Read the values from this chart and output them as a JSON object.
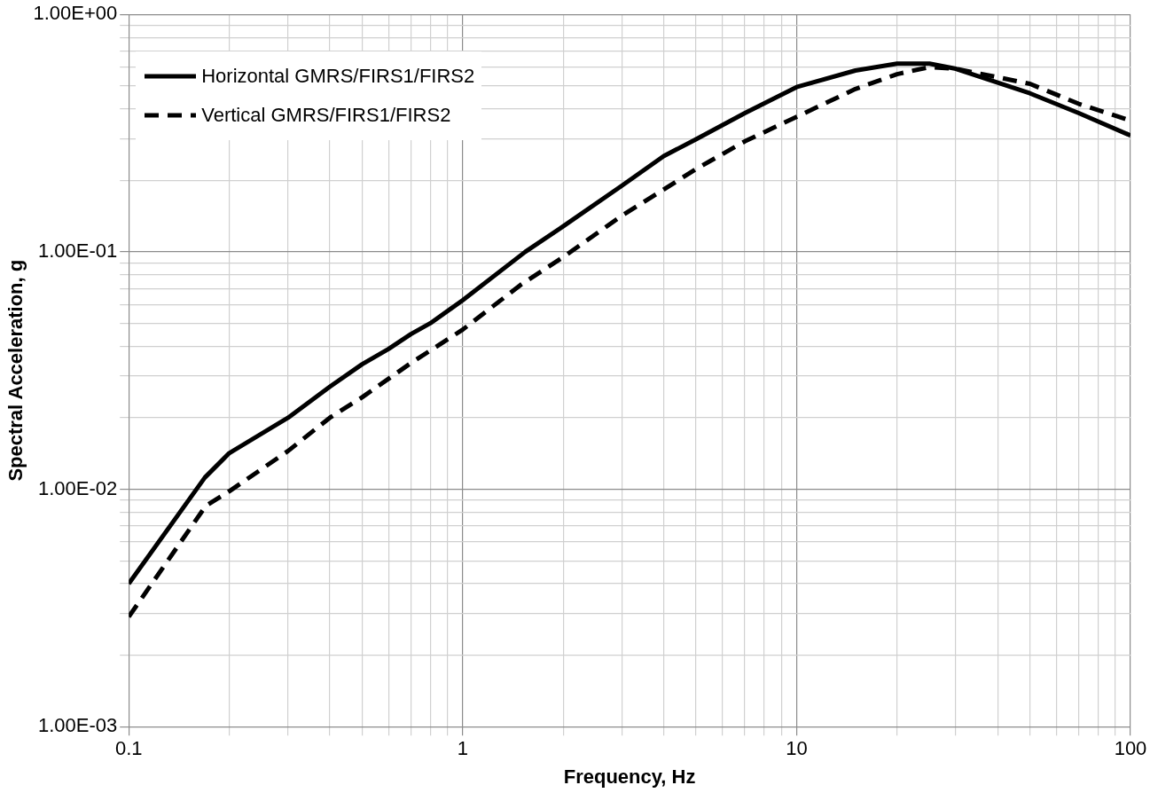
{
  "chart_data": {
    "type": "line",
    "xlabel": "Frequency, Hz",
    "ylabel": "Spectral Acceleration, g",
    "log": "xy",
    "grid": true,
    "legend": "top left",
    "marker": "none",
    "xlim": [
      0.1,
      100
    ],
    "ylim": [
      0.001,
      1
    ],
    "xticks": [
      0.1,
      {
        "value": 0.2,
        "label": null
      },
      {
        "value": 0.3,
        "label": null
      },
      {
        "value": 0.4,
        "label": null
      },
      {
        "value": 0.5,
        "label": null
      },
      {
        "value": 0.6,
        "label": null
      },
      {
        "value": 0.7,
        "label": null
      },
      {
        "value": 0.8,
        "label": null
      },
      {
        "value": 0.9,
        "label": null
      },
      1,
      {
        "value": 2,
        "label": null
      },
      {
        "value": 3,
        "label": null
      },
      {
        "value": 4,
        "label": null
      },
      {
        "value": 5,
        "label": null
      },
      {
        "value": 6,
        "label": null
      },
      {
        "value": 7,
        "label": null
      },
      {
        "value": 8,
        "label": null
      },
      {
        "value": 9,
        "label": null
      },
      10,
      {
        "value": 20,
        "label": null
      },
      {
        "value": 30,
        "label": null
      },
      {
        "value": 40,
        "label": null
      },
      {
        "value": 50,
        "label": null
      },
      {
        "value": 60,
        "label": null
      },
      {
        "value": 70,
        "label": null
      },
      {
        "value": 80,
        "label": null
      },
      {
        "value": 90,
        "label": null
      },
      100
    ],
    "yticks": [
      {
        "value": 0.001,
        "label": "1.00E-03"
      },
      {
        "value": 0.002,
        "label": null
      },
      {
        "value": 0.003,
        "label": null
      },
      {
        "value": 0.004,
        "label": null
      },
      {
        "value": 0.005,
        "label": null
      },
      {
        "value": 0.006,
        "label": null
      },
      {
        "value": 0.007,
        "label": null
      },
      {
        "value": 0.008,
        "label": null
      },
      {
        "value": 0.009,
        "label": null
      },
      {
        "value": 0.01,
        "label": "1.00E-02"
      },
      {
        "value": 0.02,
        "label": null
      },
      {
        "value": 0.03,
        "label": null
      },
      {
        "value": 0.04,
        "label": null
      },
      {
        "value": 0.05,
        "label": null
      },
      {
        "value": 0.06,
        "label": null
      },
      {
        "value": 0.07,
        "label": null
      },
      {
        "value": 0.08,
        "label": null
      },
      {
        "value": 0.09,
        "label": null
      },
      {
        "value": 0.1,
        "label": "1.00E-01"
      },
      {
        "value": 0.2,
        "label": null
      },
      {
        "value": 0.3,
        "label": null
      },
      {
        "value": 0.4,
        "label": null
      },
      {
        "value": 0.5,
        "label": null
      },
      {
        "value": 0.6,
        "label": null
      },
      {
        "value": 0.7,
        "label": null
      },
      {
        "value": 0.8,
        "label": null
      },
      {
        "value": 0.9,
        "label": null
      },
      {
        "value": 1,
        "label": "1.00E+00"
      }
    ],
    "series": [
      {
        "name": "Horizontal GMRS/FIRS1/FIRS2",
        "color": "#000000",
        "line_style": "solid",
        "x": [
          0.1,
          0.169,
          0.2,
          0.3,
          0.4,
          0.5,
          0.6,
          0.7,
          0.8,
          1,
          1.54,
          2,
          3,
          4,
          5,
          7,
          10,
          15,
          20,
          25,
          30,
          50,
          70,
          100
        ],
        "values": [
          0.004,
          0.0112,
          0.0142,
          0.02,
          0.027,
          0.0336,
          0.039,
          0.045,
          0.05,
          0.0625,
          0.1,
          0.128,
          0.19,
          0.253,
          0.298,
          0.384,
          0.494,
          0.58,
          0.62,
          0.62,
          0.59,
          0.465,
          0.384,
          0.309
        ]
      },
      {
        "name": "Vertical GMRS/FIRS1/FIRS2",
        "color": "#000000",
        "line_style": "dashed",
        "x": [
          0.1,
          0.17,
          0.2,
          0.3,
          0.4,
          0.5,
          0.7,
          1,
          1.5,
          2,
          3,
          4,
          5,
          7,
          10,
          15,
          20,
          25,
          30,
          50,
          70,
          100
        ],
        "values": [
          0.0029,
          0.0085,
          0.0098,
          0.0145,
          0.02,
          0.0244,
          0.034,
          0.047,
          0.073,
          0.095,
          0.142,
          0.183,
          0.223,
          0.292,
          0.37,
          0.485,
          0.56,
          0.6,
          0.59,
          0.51,
          0.42,
          0.357
        ]
      }
    ]
  }
}
